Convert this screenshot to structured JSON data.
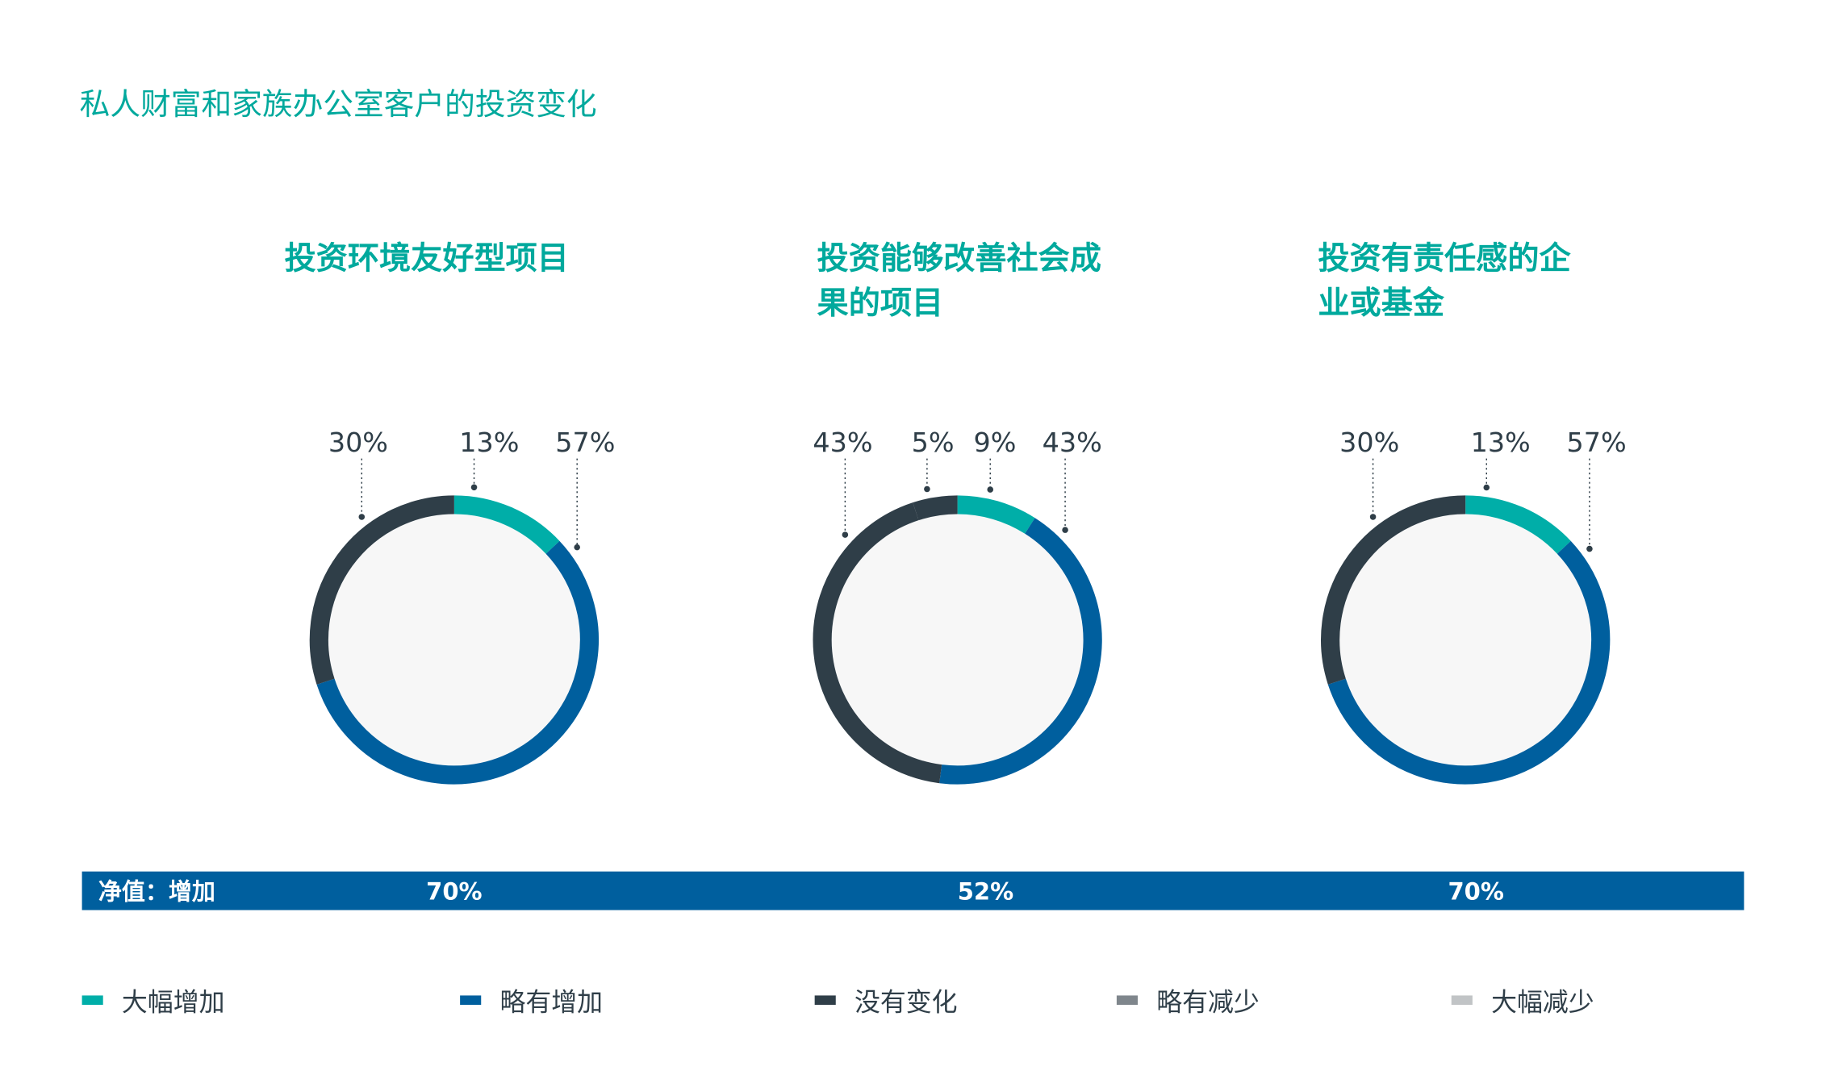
{
  "title": "私人财富和家族办公室客户的投资变化",
  "colors": {
    "大幅增加": "#00aea8",
    "略有增加": "#005f9e",
    "没有变化": "#2f3e48",
    "略有减少": "#7f868c",
    "大幅减少": "#c1c4c6",
    "bar": "#005f9e"
  },
  "chart_data": [
    {
      "type": "pie",
      "title_lines": [
        "投资环境友好型项目"
      ],
      "slices": [
        {
          "category": "大幅增加",
          "value": 13,
          "label": "13%"
        },
        {
          "category": "略有增加",
          "value": 57,
          "label": "57%"
        },
        {
          "category": "没有变化",
          "value": 30,
          "label": "30%"
        }
      ],
      "net_increase": "70%"
    },
    {
      "type": "pie",
      "title_lines": [
        "投资能够改善社会成",
        "果的项目"
      ],
      "slices": [
        {
          "category": "大幅增加",
          "value": 9,
          "label": "9%"
        },
        {
          "category": "略有增加",
          "value": 43,
          "label": "43%"
        },
        {
          "category": "没有变化",
          "value": 43,
          "label": "43%"
        },
        {
          "category": "没有变化",
          "value": 5,
          "label": "5%"
        }
      ],
      "net_increase": "52%"
    },
    {
      "type": "pie",
      "title_lines": [
        "投资有责任感的企",
        "业或基金"
      ],
      "slices": [
        {
          "category": "大幅增加",
          "value": 13,
          "label": "13%"
        },
        {
          "category": "略有增加",
          "value": 57,
          "label": "57%"
        },
        {
          "category": "没有变化",
          "value": 30,
          "label": "30%"
        }
      ],
      "net_increase": "70%"
    }
  ],
  "net_bar": {
    "label": "净值：增加"
  },
  "legend": [
    "大幅增加",
    "略有增加",
    "没有变化",
    "略有减少",
    "大幅减少"
  ]
}
